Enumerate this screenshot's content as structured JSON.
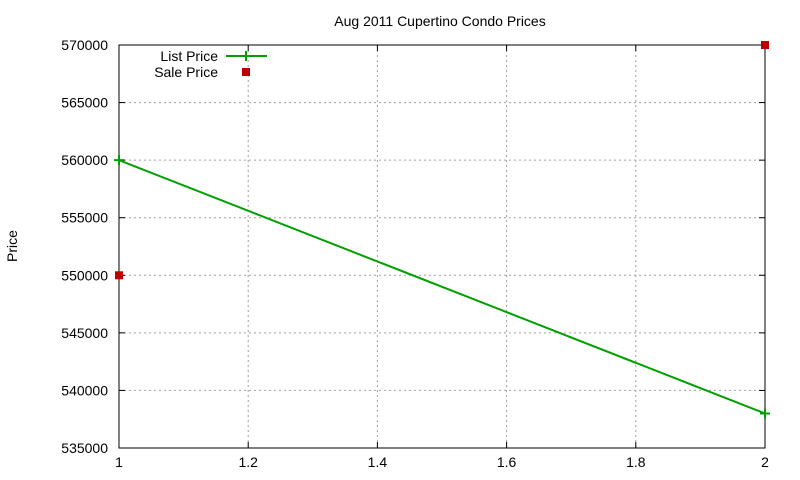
{
  "chart_data": {
    "type": "line",
    "title": "Aug 2011 Cupertino Condo Prices",
    "xlabel": "",
    "ylabel": "Price",
    "xlim": [
      1,
      2
    ],
    "ylim": [
      535000,
      570000
    ],
    "x_ticks": [
      1,
      1.2,
      1.4,
      1.6,
      1.8,
      2
    ],
    "x_tick_labels": [
      "1",
      "1.2",
      "1.4",
      "1.6",
      "1.8",
      "2"
    ],
    "y_ticks": [
      535000,
      540000,
      545000,
      550000,
      555000,
      560000,
      565000,
      570000
    ],
    "y_tick_labels": [
      "535000",
      "540000",
      "545000",
      "550000",
      "555000",
      "560000",
      "565000",
      "570000"
    ],
    "grid": true,
    "legend_position": "top-left",
    "series": [
      {
        "name": "List Price",
        "style": "linespoints",
        "marker": "plus",
        "color": "#00a000",
        "x": [
          1,
          2
        ],
        "values": [
          560000,
          538000
        ]
      },
      {
        "name": "Sale Price",
        "style": "points",
        "marker": "square",
        "color": "#c00000",
        "x": [
          1,
          2
        ],
        "values": [
          550000,
          570000
        ]
      }
    ]
  }
}
